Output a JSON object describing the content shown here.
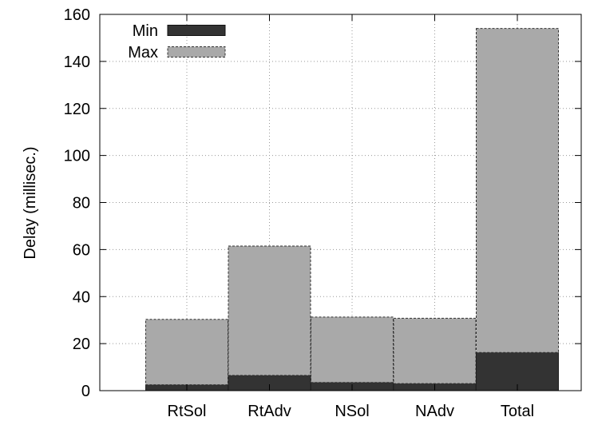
{
  "chart_data": {
    "type": "bar",
    "stacked": true,
    "categories": [
      "RtSol",
      "RtAdv",
      "NSol",
      "NAdv",
      "Total"
    ],
    "series": [
      {
        "name": "Min",
        "values": [
          2.5,
          6.5,
          3.5,
          3.0,
          16.2
        ],
        "color": "#333333"
      },
      {
        "name": "Max",
        "values": [
          27.8,
          55.0,
          27.8,
          27.8,
          137.8
        ],
        "color": "#a9a9a9"
      }
    ],
    "ylabel": "Delay (millisec.)",
    "xlabel": "",
    "ylim": [
      0,
      160
    ],
    "yticks": [
      "0",
      "20",
      "40",
      "60",
      "80",
      "100",
      "120",
      "140",
      "160"
    ],
    "grid": true,
    "legend": "top-left"
  }
}
